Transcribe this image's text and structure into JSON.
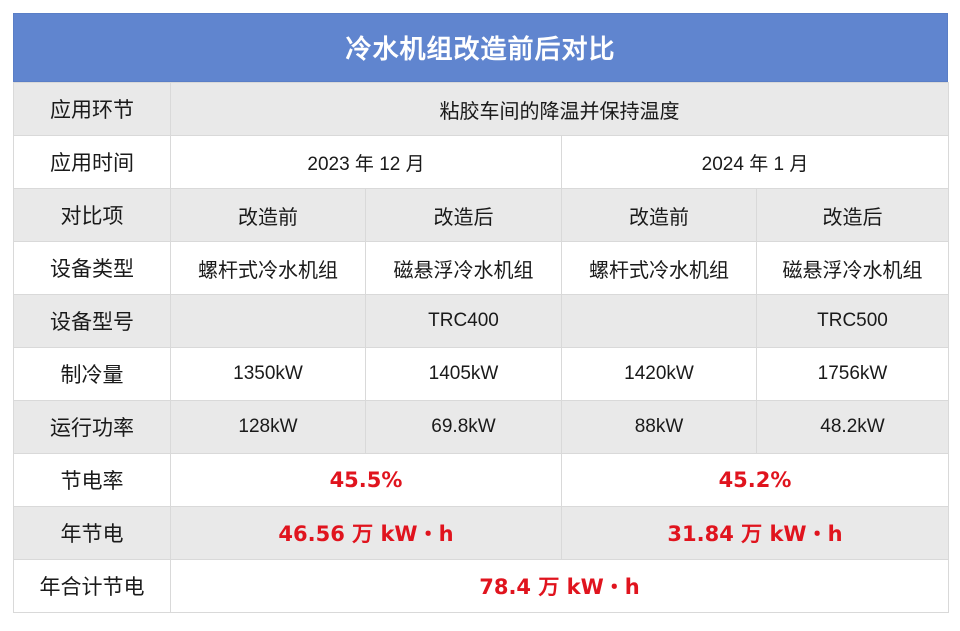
{
  "title": "冷水机组改造前后对比",
  "colors": {
    "header_bg": "#6085cf",
    "header_text": "#ffffff",
    "highlight_red": "#e0141e",
    "row_gray": "#e9e9e9",
    "row_white": "#ffffff",
    "border": "#d9d9d9"
  },
  "rows": {
    "application": {
      "label": "应用环节",
      "value": "粘胶车间的降温并保持温度"
    },
    "time": {
      "label": "应用时间",
      "period1": "2023 年 12 月",
      "period2": "2024 年 1 月"
    },
    "compare": {
      "label": "对比项",
      "p1_before": "改造前",
      "p1_after": "改造后",
      "p2_before": "改造前",
      "p2_after": "改造后"
    },
    "equipment_type": {
      "label": "设备类型",
      "p1_before": "螺杆式冷水机组",
      "p1_after": "磁悬浮冷水机组",
      "p2_before": "螺杆式冷水机组",
      "p2_after": "磁悬浮冷水机组"
    },
    "model": {
      "label": "设备型号",
      "p1_before": "",
      "p1_after": "TRC400",
      "p2_before": "",
      "p2_after": "TRC500"
    },
    "cooling_capacity": {
      "label": "制冷量",
      "p1_before": "1350kW",
      "p1_after": "1405kW",
      "p2_before": "1420kW",
      "p2_after": "1756kW"
    },
    "operating_power": {
      "label": "运行功率",
      "p1_before": "128kW",
      "p1_after": "69.8kW",
      "p2_before": "88kW",
      "p2_after": "48.2kW"
    },
    "saving_rate": {
      "label": "节电率",
      "period1": "45.5%",
      "period2": "45.2%"
    },
    "annual_saving": {
      "label": "年节电",
      "period1": "46.56 万 kW・h",
      "period2": "31.84 万 kW・h"
    },
    "total_annual_saving": {
      "label": "年合计节电",
      "value": "78.4 万 kW・h"
    }
  }
}
